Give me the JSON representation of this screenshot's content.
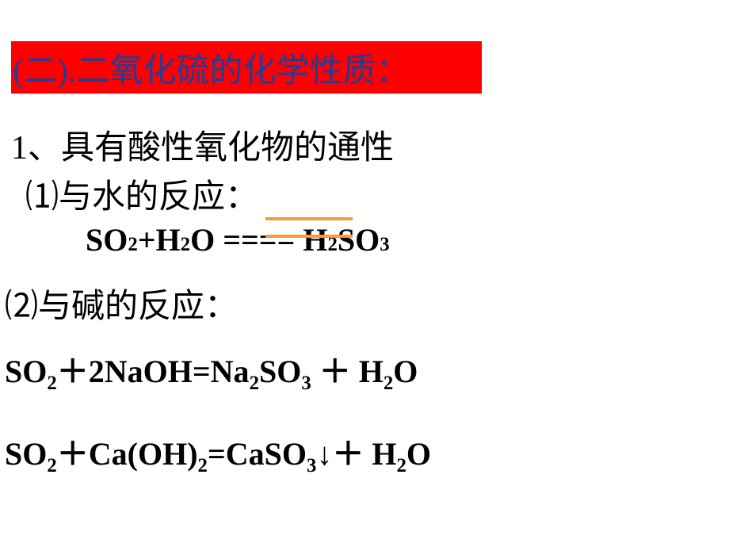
{
  "colors": {
    "header_bg": "#ff0000",
    "header_text": "#1e3e9a",
    "body_text": "#000000",
    "accent_line": "#ff9933",
    "background": "#ffffff"
  },
  "fonts": {
    "cjk": "SimSun",
    "latin": "Times New Roman",
    "header_size_pt": 32,
    "body_size_pt": 32,
    "eq_size_pt": 30
  },
  "header": {
    "title": "(二).二氧化硫的化学性质："
  },
  "section1": {
    "heading": "1、具有酸性氧化物的通性",
    "sub1_label": "⑴与水的反应：",
    "eq1_left": "SO",
    "eq1_sub1": "2",
    "eq1_plus": "+H",
    "eq1_sub2": "2",
    "eq1_o": "O ====  H",
    "eq1_sub3": "2",
    "eq1_so": "SO",
    "eq1_sub4": "3",
    "equilibrium_symbol": true,
    "sub2_label": "⑵与碱的反应：",
    "eq2_p1": "SO",
    "eq2_s1": "2",
    "eq2_p2": "＋2NaOH=Na",
    "eq2_s2": "2",
    "eq2_p3": "SO",
    "eq2_s3": "3",
    "eq2_p4": " ＋ H",
    "eq2_s4": "2",
    "eq2_p5": "O",
    "eq3_p1": "SO",
    "eq3_s1": "2",
    "eq3_p2": "＋Ca(OH)",
    "eq3_s2": "2",
    "eq3_p3": "=CaSO",
    "eq3_s3": "3",
    "eq3_p4": "↓＋ H",
    "eq3_s4": "2",
    "eq3_p5": "O"
  }
}
